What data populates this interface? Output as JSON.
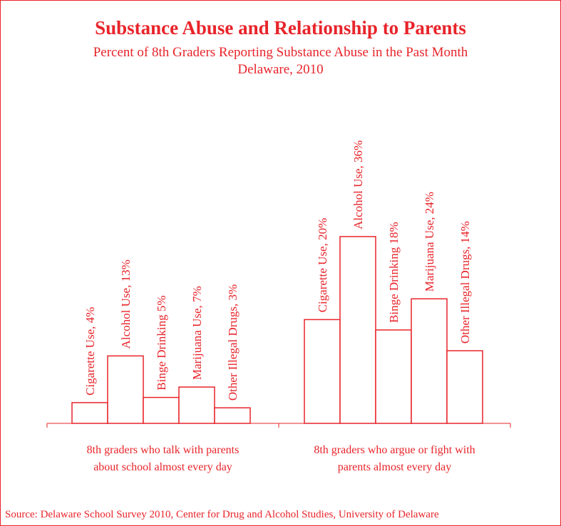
{
  "title": "Substance Abuse and Relationship to Parents",
  "subtitle_line1": "Percent of 8th Graders Reporting Substance Abuse in the Past Month",
  "subtitle_line2": "Delaware, 2010",
  "source": "Source: Delaware School Survey 2010, Center for Drug and Alcohol Studies, University of Delaware",
  "colors": {
    "accent": "#e8242a",
    "background": "#ffffff"
  },
  "chart_data": {
    "type": "bar",
    "title": "Substance Abuse and Relationship to Parents",
    "ylim": [
      0,
      40
    ],
    "grid": false,
    "legend": "none",
    "groups": [
      {
        "name_lines": [
          "8th graders who talk with parents",
          "about school almost every day"
        ],
        "bars": [
          {
            "label": "Cigarette Use, 4%",
            "value": 4
          },
          {
            "label": "Alcohol Use, 13%",
            "value": 13
          },
          {
            "label": "Binge Drinking 5%",
            "value": 5
          },
          {
            "label": "Marijuana Use, 7%",
            "value": 7
          },
          {
            "label": "Other Illegal Drugs, 3%",
            "value": 3
          }
        ]
      },
      {
        "name_lines": [
          "8th graders who argue or fight with",
          "parents almost every day"
        ],
        "bars": [
          {
            "label": "Cigarette Use, 20%",
            "value": 20
          },
          {
            "label": "Alcohol Use, 36%",
            "value": 36
          },
          {
            "label": "Binge Drinking 18%",
            "value": 18
          },
          {
            "label": "Marijuana Use, 24%",
            "value": 24
          },
          {
            "label": "Other Illegal Drugs, 14%",
            "value": 14
          }
        ]
      }
    ]
  }
}
